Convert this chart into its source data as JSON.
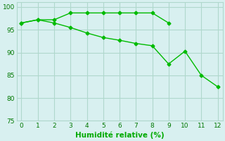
{
  "line1_x": [
    0,
    1,
    2,
    3,
    4,
    5,
    6,
    7,
    8,
    9
  ],
  "line1_y": [
    96.5,
    97.2,
    97.2,
    98.7,
    98.7,
    98.7,
    98.7,
    98.7,
    98.7,
    96.5
  ],
  "line2_x": [
    0,
    1,
    2,
    3,
    4,
    5,
    6,
    7,
    8,
    9,
    10,
    11,
    12
  ],
  "line2_y": [
    96.5,
    97.2,
    96.5,
    95.5,
    94.3,
    93.3,
    92.7,
    92.0,
    91.5,
    87.5,
    90.3,
    85.0,
    82.5
  ],
  "line_color": "#00bb00",
  "bg_color": "#d8f0f0",
  "grid_color": "#b0d8cc",
  "xlabel": "Humidité relative (%)",
  "xlabel_color": "#00aa00",
  "xlim": [
    -0.3,
    12.3
  ],
  "ylim": [
    75,
    101
  ],
  "yticks": [
    75,
    80,
    85,
    90,
    95,
    100
  ],
  "xticks": [
    0,
    1,
    2,
    3,
    4,
    5,
    6,
    7,
    8,
    9,
    10,
    11,
    12
  ],
  "marker": "D",
  "markersize": 2.5,
  "linewidth": 1.0
}
